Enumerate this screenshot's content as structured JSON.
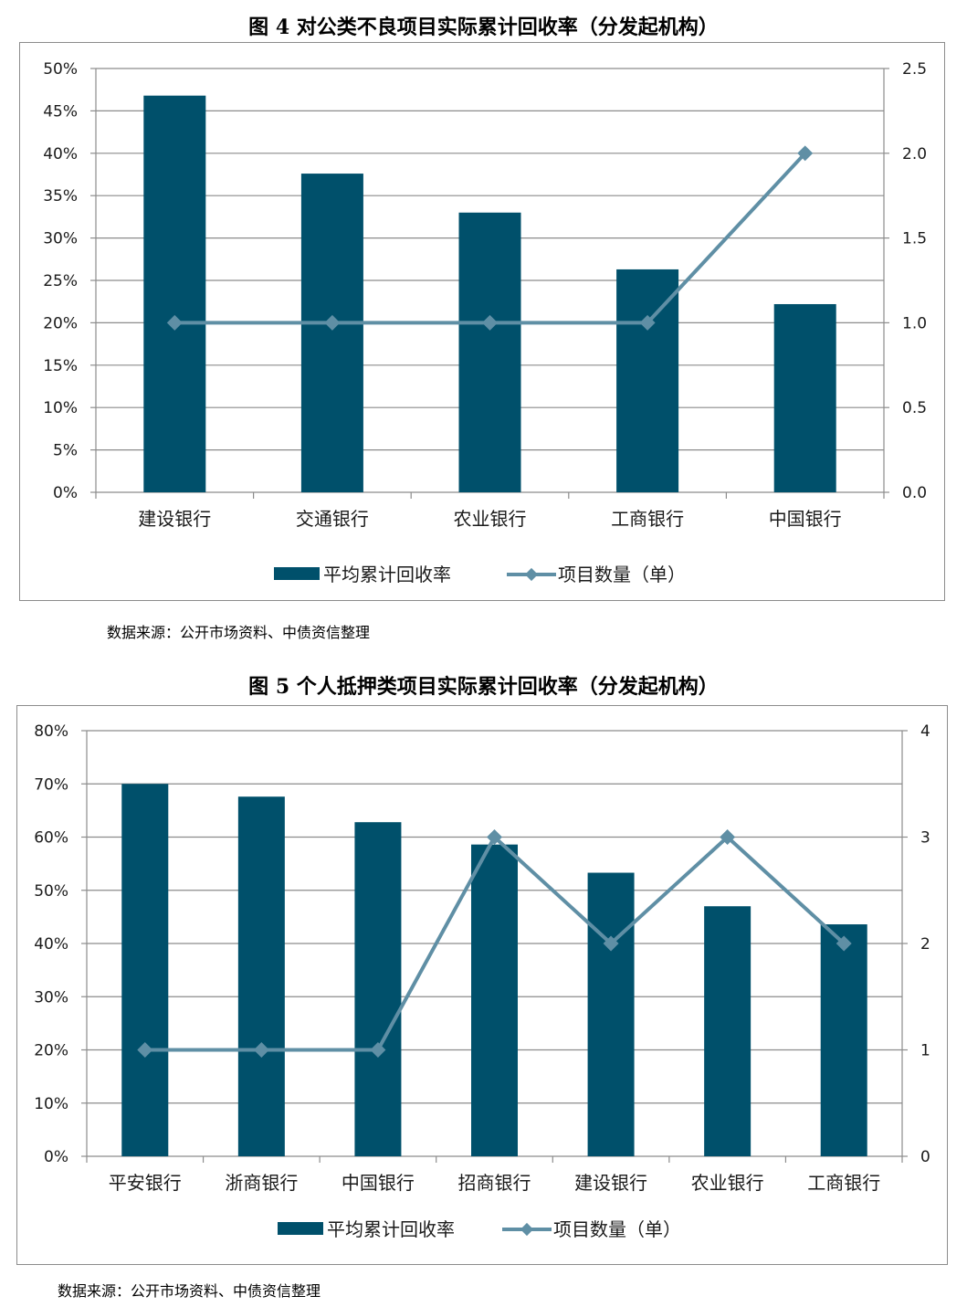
{
  "colors": {
    "bar": "#00506b",
    "line": "#5f8fa5",
    "grid": "#8c8c8c"
  },
  "figures": [
    {
      "title": "图 4  对公类不良项目实际累计回收率（分发起机构）",
      "source": "数据来源：公开市场资料、中债资信整理",
      "legend": {
        "bar_label": "平均累计回收率",
        "line_label": "项目数量（单）"
      }
    },
    {
      "title": "图 5  个人抵押类项目实际累计回收率（分发起机构）",
      "source": "数据来源：公开市场资料、中债资信整理",
      "legend": {
        "bar_label": "平均累计回收率",
        "line_label": "项目数量（单）"
      }
    }
  ],
  "chart_data": [
    {
      "type": "bar",
      "title": "图 4  对公类不良项目实际累计回收率（分发起机构）",
      "categories": [
        "建设银行",
        "交通银行",
        "农业银行",
        "工商银行",
        "中国银行"
      ],
      "series": [
        {
          "name": "平均累计回收率",
          "type": "bar",
          "axis": "left",
          "values": [
            46.8,
            37.6,
            33.0,
            26.3,
            22.2
          ]
        },
        {
          "name": "项目数量（单）",
          "type": "line",
          "axis": "right",
          "values": [
            1,
            1,
            1,
            1,
            2
          ]
        }
      ],
      "ylim_left": [
        0,
        50
      ],
      "yticks_left": [
        "0%",
        "5%",
        "10%",
        "15%",
        "20%",
        "25%",
        "30%",
        "35%",
        "40%",
        "45%",
        "50%"
      ],
      "ylim_right": [
        0,
        2.5
      ],
      "yticks_right": [
        "0.0",
        "0.5",
        "1.0",
        "1.5",
        "2.0",
        "2.5"
      ],
      "grid": true,
      "legend_position": "bottom"
    },
    {
      "type": "bar",
      "title": "图 5  个人抵押类项目实际累计回收率（分发起机构）",
      "categories": [
        "平安银行",
        "浙商银行",
        "中国银行",
        "招商银行",
        "建设银行",
        "农业银行",
        "工商银行"
      ],
      "series": [
        {
          "name": "平均累计回收率",
          "type": "bar",
          "axis": "left",
          "values": [
            70.0,
            67.6,
            62.8,
            58.6,
            53.3,
            47.0,
            43.6
          ]
        },
        {
          "name": "项目数量（单）",
          "type": "line",
          "axis": "right",
          "values": [
            1,
            1,
            1,
            3,
            2,
            3,
            2
          ]
        }
      ],
      "ylim_left": [
        0,
        80
      ],
      "yticks_left": [
        "0%",
        "10%",
        "20%",
        "30%",
        "40%",
        "50%",
        "60%",
        "70%",
        "80%"
      ],
      "ylim_right": [
        0,
        4
      ],
      "yticks_right": [
        "0",
        "1",
        "2",
        "3",
        "4"
      ],
      "grid": true,
      "legend_position": "bottom"
    }
  ]
}
